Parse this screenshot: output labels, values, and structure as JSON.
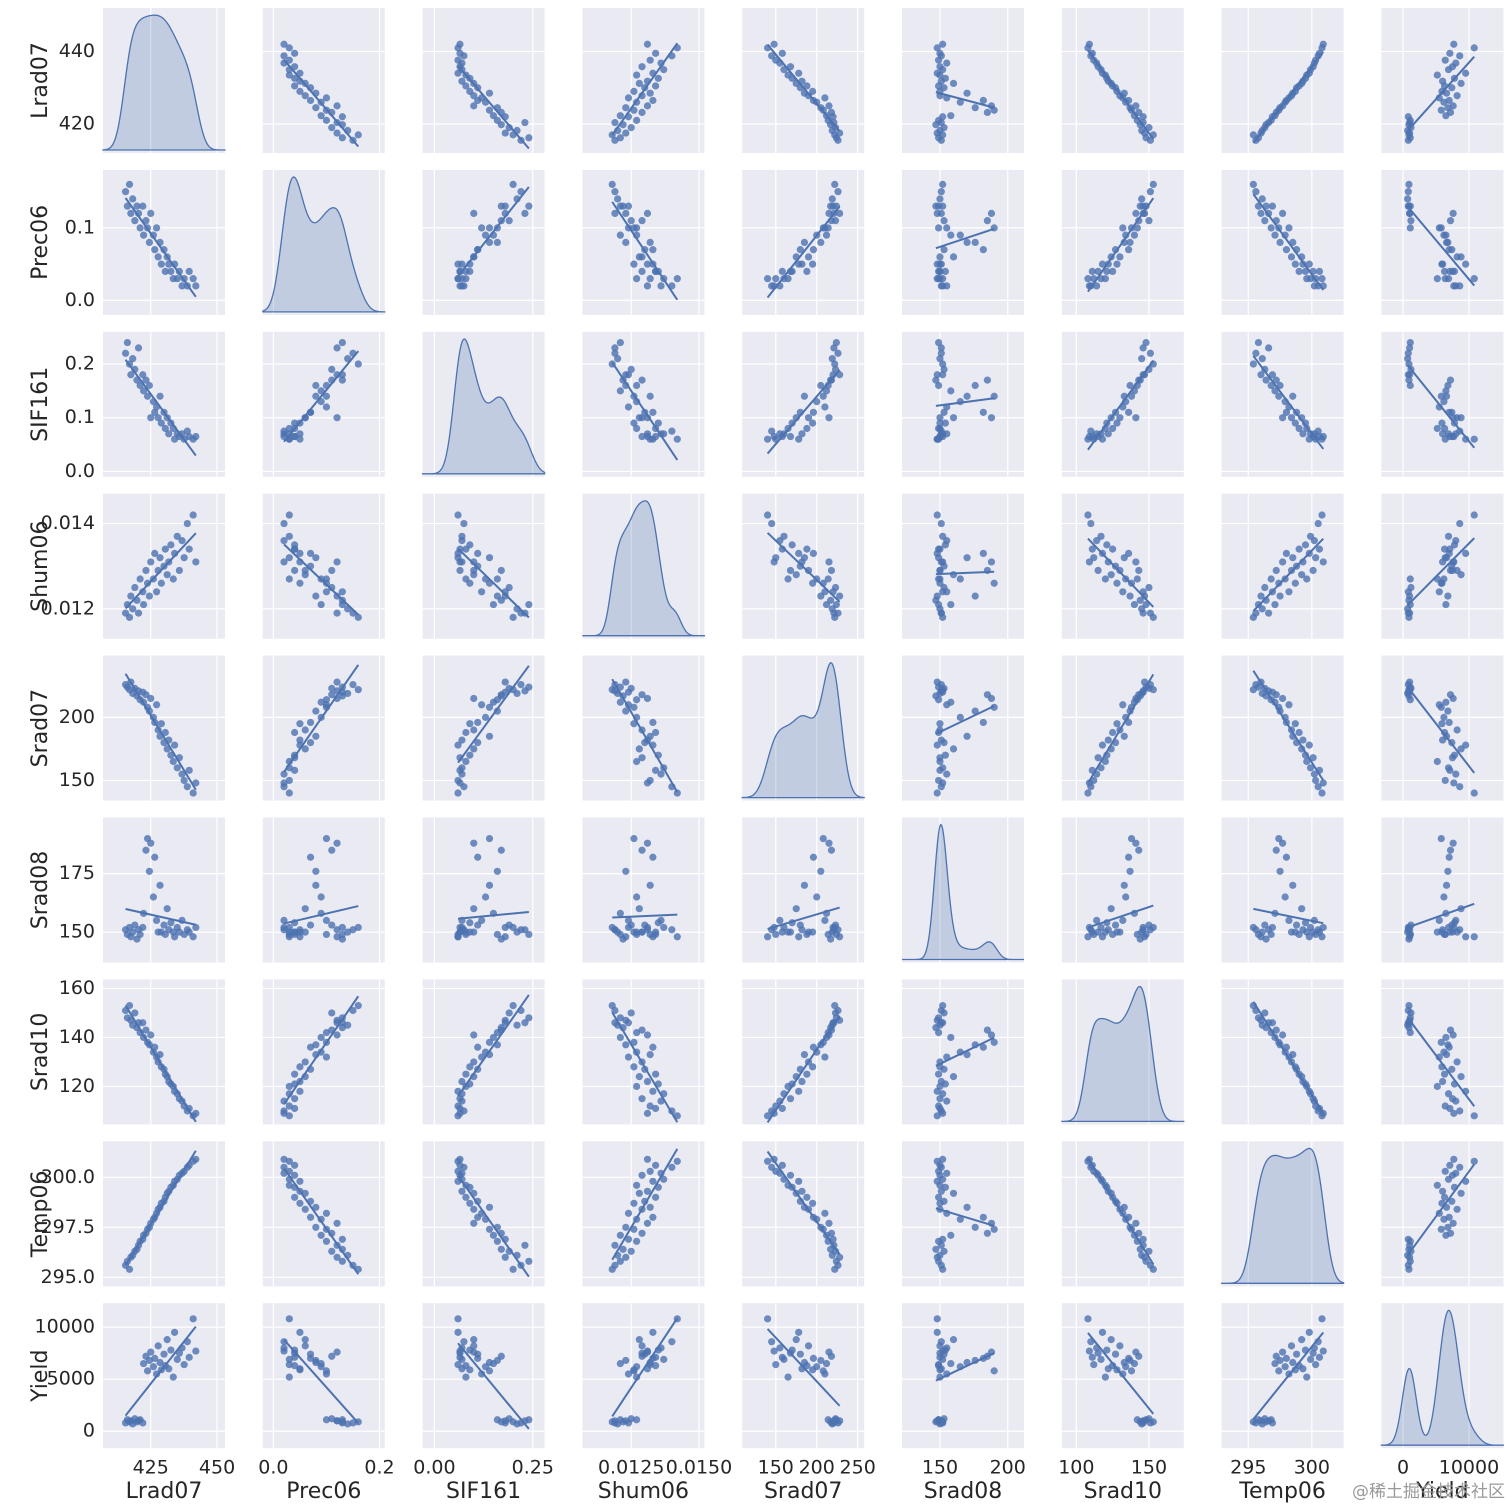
{
  "chart_data": {
    "type": "pairplot",
    "color": "#4c72b0",
    "grid": true,
    "watermark": "@稀土掘金技术社区",
    "variables": [
      {
        "name": "Lrad07",
        "xlim": [
          407,
          453
        ],
        "ylim": [
          412,
          452
        ],
        "xticks": [
          425,
          450
        ],
        "yticks": [
          420,
          440
        ]
      },
      {
        "name": "Prec06",
        "xlim": [
          -0.02,
          0.21
        ],
        "ylim": [
          -0.02,
          0.18
        ],
        "xticks": [
          {
            "value": 0,
            "label": "0.0"
          },
          0.2
        ],
        "yticks": [
          {
            "value": 0,
            "label": "0.0"
          },
          0.1
        ]
      },
      {
        "name": "SIF161",
        "xlim": [
          -0.03,
          0.28
        ],
        "ylim": [
          -0.01,
          0.26
        ],
        "xticks": [
          {
            "value": 0,
            "label": "0.00"
          },
          0.25
        ],
        "yticks": [
          {
            "value": 0,
            "label": "0.0"
          },
          0.1,
          0.2
        ]
      },
      {
        "name": "Shum06",
        "xlim": [
          0.0107,
          0.0152
        ],
        "ylim": [
          0.0113,
          0.0147
        ],
        "xticks": [
          0.0125,
          {
            "value": 0.015,
            "label": "0.0150"
          }
        ],
        "yticks": [
          0.012,
          0.014
        ]
      },
      {
        "name": "Srad07",
        "xlim": [
          109,
          258
        ],
        "ylim": [
          134,
          249
        ],
        "xticks": [
          150,
          200,
          250
        ],
        "yticks": [
          150,
          200
        ]
      },
      {
        "name": "Srad08",
        "xlim": [
          122,
          212
        ],
        "ylim": [
          137,
          199
        ],
        "xticks": [
          150,
          200
        ],
        "yticks": [
          150,
          175
        ]
      },
      {
        "name": "Srad10",
        "xlim": [
          90,
          174
        ],
        "ylim": [
          104.5,
          163.7
        ],
        "xticks": [
          100,
          150
        ],
        "yticks": [
          120,
          140,
          160
        ]
      },
      {
        "name": "Temp06",
        "xlim": [
          292.9,
          302.5
        ],
        "ylim": [
          294.55,
          301.8
        ],
        "xticks": [
          295,
          300
        ],
        "yticks": [
          {
            "value": 295,
            "label": "295.0"
          },
          297.5,
          {
            "value": 300,
            "label": "300.0"
          }
        ]
      },
      {
        "name": "Yield",
        "xlim": [
          -3280,
          15220
        ],
        "ylim": [
          -1630,
          12300
        ],
        "xticks": [
          0,
          10000
        ],
        "yticks": [
          0,
          5000,
          10000
        ]
      }
    ],
    "samples": [
      [
        415.5,
        0.15,
        0.22,
        0.0119,
        226,
        151,
        151,
        295.6,
        800
      ],
      [
        416.2,
        0.13,
        0.24,
        0.0121,
        224,
        149,
        148,
        295.8,
        1100
      ],
      [
        417,
        0.16,
        0.2,
        0.0118,
        222,
        152,
        153,
        295.4,
        900
      ],
      [
        417.5,
        0.12,
        0.18,
        0.0123,
        228,
        148,
        147,
        296,
        1000
      ],
      [
        418.2,
        0.14,
        0.21,
        0.012,
        219,
        150,
        145,
        296.1,
        700
      ],
      [
        419,
        0.11,
        0.19,
        0.0125,
        223,
        153,
        150,
        296.3,
        1200
      ],
      [
        419.8,
        0.13,
        0.17,
        0.0122,
        217,
        147,
        144,
        296.4,
        900
      ],
      [
        420.4,
        0.12,
        0.23,
        0.0119,
        221,
        151,
        146,
        296.6,
        1000
      ],
      [
        421,
        0.1,
        0.16,
        0.0127,
        214,
        149,
        142,
        296.8,
        1100
      ],
      [
        422,
        0.13,
        0.18,
        0.0124,
        220,
        152,
        146,
        296.9,
        800
      ],
      [
        422.3,
        0.09,
        0.15,
        0.0121,
        212,
        158,
        140,
        297.1,
        6500
      ],
      [
        423.2,
        0.11,
        0.17,
        0.0129,
        218,
        185,
        143,
        297.2,
        7200
      ],
      [
        423.8,
        0.1,
        0.14,
        0.0126,
        208,
        190,
        138,
        297.4,
        5800
      ],
      [
        424.5,
        0.08,
        0.16,
        0.0123,
        205,
        176,
        137,
        297.5,
        6800
      ],
      [
        425,
        0.12,
        0.1,
        0.0131,
        215,
        188,
        141,
        297.7,
        7600
      ],
      [
        426,
        0.09,
        0.13,
        0.0127,
        200,
        165,
        134,
        297.9,
        6200
      ],
      [
        426.5,
        0.07,
        0.11,
        0.0133,
        196,
        182,
        136,
        298,
        7000
      ],
      [
        427.2,
        0.1,
        0.12,
        0.0124,
        210,
        155,
        132,
        298.2,
        5500
      ],
      [
        427.8,
        0.06,
        0.1,
        0.0129,
        190,
        150,
        130,
        298.4,
        8200
      ],
      [
        428.5,
        0.08,
        0.14,
        0.0132,
        185,
        170,
        133,
        298.5,
        6600
      ],
      [
        429,
        0.05,
        0.09,
        0.0126,
        195,
        150,
        128,
        298.7,
        5900
      ],
      [
        430,
        0.07,
        0.11,
        0.013,
        180,
        153,
        127,
        298.8,
        7400
      ],
      [
        430.5,
        0.04,
        0.08,
        0.0134,
        188,
        149,
        125,
        299,
        6300
      ],
      [
        431.2,
        0.06,
        0.1,
        0.0128,
        175,
        160,
        124,
        299.2,
        8800
      ],
      [
        431.8,
        0.05,
        0.07,
        0.0131,
        182,
        151,
        122,
        299.3,
        6000
      ],
      [
        432.6,
        0.04,
        0.09,
        0.0135,
        170,
        154,
        121,
        299.5,
        7800
      ],
      [
        433.5,
        0.03,
        0.08,
        0.0127,
        165,
        150,
        120,
        299.6,
        5200
      ],
      [
        434,
        0.05,
        0.06,
        0.0133,
        178,
        148,
        118,
        299.8,
        9500
      ],
      [
        435,
        0.03,
        0.07,
        0.0137,
        160,
        152,
        117,
        299.9,
        6900
      ],
      [
        435.8,
        0.04,
        0.065,
        0.0129,
        168,
        150,
        115,
        300.1,
        7500
      ],
      [
        436.8,
        0.02,
        0.07,
        0.0136,
        155,
        155,
        114,
        300.2,
        8000
      ],
      [
        437.6,
        0.03,
        0.06,
        0.0132,
        150,
        149,
        112,
        300.3,
        6400
      ],
      [
        438.8,
        0.02,
        0.075,
        0.014,
        145,
        151,
        110,
        300.5,
        8600
      ],
      [
        439.5,
        0.04,
        0.065,
        0.0134,
        158,
        150,
        111,
        300.6,
        7100
      ],
      [
        441,
        0.03,
        0.06,
        0.0142,
        140,
        148,
        108,
        300.8,
        10800
      ],
      [
        442,
        0.02,
        0.065,
        0.0131,
        148,
        152,
        109,
        300.9,
        7700
      ]
    ]
  }
}
